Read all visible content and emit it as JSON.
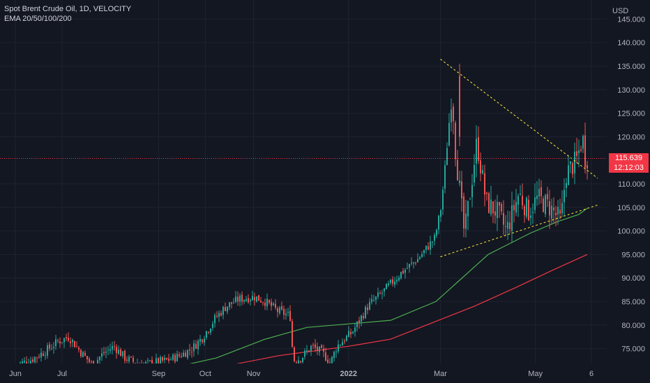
{
  "legend": {
    "symbol_line": "Spot Brent Crude Oil, 1D, VELOCITY",
    "ema_line": "EMA 20/50/100/200"
  },
  "price_axis": {
    "currency": "USD",
    "ticks": [
      "145.000",
      "140.000",
      "135.000",
      "130.000",
      "125.000",
      "120.000",
      "110.000",
      "105.000",
      "100.000",
      "95.000",
      "90.000",
      "85.000",
      "80.000",
      "75.000"
    ]
  },
  "last_price": {
    "value": "115.639",
    "countdown": "12:12:03"
  },
  "time_axis": {
    "labels": [
      "Jun",
      "Jul",
      "Sep",
      "Oct",
      "Nov",
      "2022",
      "Mar",
      "May",
      "6"
    ]
  },
  "colors": {
    "background": "#131722",
    "up": "#26a69a",
    "down": "#ef5350",
    "ema_green": "#4caf50",
    "ema_red": "#f23645",
    "trendline": "#ffeb3b",
    "price_tag": "#f23645",
    "grid": "#1f2330",
    "axis_text": "#b2b5be"
  },
  "chart_data": {
    "type": "candlestick",
    "title": "Spot Brent Crude Oil, 1D, VELOCITY",
    "ylabel": "USD",
    "ylim": [
      71.5,
      146
    ],
    "last_price": 115.639,
    "closes_path": [
      [
        "2021-06-01",
        71.5
      ],
      [
        "2021-06-10",
        72.5
      ],
      [
        "2021-06-20",
        74.5
      ],
      [
        "2021-06-28",
        76.5
      ],
      [
        "2021-07-05",
        77.5
      ],
      [
        "2021-07-12",
        74.5
      ],
      [
        "2021-07-20",
        71.5
      ],
      [
        "2021-07-27",
        74
      ],
      [
        "2021-08-03",
        75.5
      ],
      [
        "2021-08-10",
        73
      ],
      [
        "2021-08-20",
        71.5
      ],
      [
        "2021-08-28",
        72
      ],
      [
        "2021-09-06",
        72.5
      ],
      [
        "2021-09-14",
        73.5
      ],
      [
        "2021-09-22",
        75
      ],
      [
        "2021-09-29",
        77.5
      ],
      [
        "2021-10-07",
        81.5
      ],
      [
        "2021-10-14",
        84
      ],
      [
        "2021-10-22",
        85.5
      ],
      [
        "2021-11-01",
        86
      ],
      [
        "2021-11-08",
        85
      ],
      [
        "2021-11-16",
        83
      ],
      [
        "2021-11-24",
        82
      ],
      [
        "2021-11-26",
        72.5
      ],
      [
        "2021-12-01",
        73
      ],
      [
        "2021-12-08",
        75.5
      ],
      [
        "2021-12-15",
        74
      ],
      [
        "2021-12-20",
        72
      ],
      [
        "2021-12-24",
        75.5
      ],
      [
        "2022-01-03",
        78.5
      ],
      [
        "2022-01-13",
        84
      ],
      [
        "2022-01-24",
        87.5
      ],
      [
        "2022-02-03",
        91
      ],
      [
        "2022-02-14",
        94
      ],
      [
        "2022-02-25",
        98.5
      ],
      [
        "2022-03-01",
        105
      ],
      [
        "2022-03-04",
        115
      ],
      [
        "2022-03-08",
        130
      ],
      [
        "2022-03-10",
        118
      ],
      [
        "2022-03-16",
        99
      ],
      [
        "2022-03-24",
        119
      ],
      [
        "2022-03-30",
        106
      ],
      [
        "2022-04-06",
        104
      ],
      [
        "2022-04-12",
        100
      ],
      [
        "2022-04-20",
        108
      ],
      [
        "2022-04-26",
        104
      ],
      [
        "2022-05-02",
        107
      ],
      [
        "2022-05-10",
        105
      ],
      [
        "2022-05-17",
        102
      ],
      [
        "2022-05-20",
        112
      ],
      [
        "2022-05-27",
        115
      ],
      [
        "2022-05-31",
        120
      ],
      [
        "2022-06-01",
        115.6
      ]
    ],
    "series": [
      {
        "name": "EMA green",
        "values": [
          [
            264,
            71.5
          ],
          [
            310,
            73
          ],
          [
            380,
            77
          ],
          [
            440,
            79.5
          ],
          [
            480,
            80
          ],
          [
            560,
            81
          ],
          [
            625,
            85
          ],
          [
            655,
            89
          ],
          [
            700,
            95
          ],
          [
            760,
            99.5
          ],
          [
            800,
            102
          ],
          [
            830,
            103.5
          ],
          [
            842,
            104.8
          ]
        ]
      },
      {
        "name": "EMA red",
        "values": [
          [
            330,
            71.5
          ],
          [
            400,
            73.5
          ],
          [
            500,
            75.5
          ],
          [
            560,
            77
          ],
          [
            620,
            80.5
          ],
          [
            680,
            84
          ],
          [
            740,
            88
          ],
          [
            790,
            91.5
          ],
          [
            842,
            95
          ]
        ]
      }
    ],
    "annotations": [
      {
        "type": "trendline",
        "from": [
          "2022-03-01",
          136.5
        ],
        "to": [
          "2022-06-10",
          111.2
        ]
      },
      {
        "type": "trendline",
        "from": [
          "2022-03-01",
          94.5
        ],
        "to": [
          "2022-06-10",
          105.5
        ]
      }
    ]
  }
}
